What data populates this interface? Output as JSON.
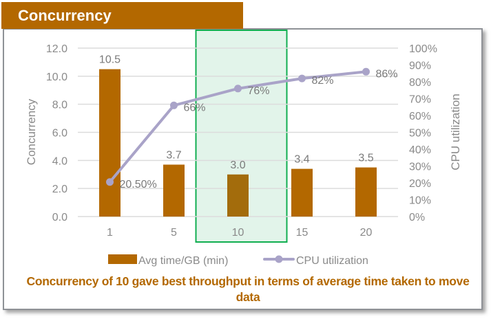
{
  "title": "Concurrency",
  "caption": "Concurrency of 10 gave best throughput in terms of average time taken to move data",
  "colors": {
    "bar": "#b36800",
    "bar_highlighted": "#a36c0c",
    "line": "#a9a3c8",
    "highlight_fill": "#e2f4ea",
    "highlight_border": "#10ae50",
    "axis_text": "#8a8a8a",
    "label_text": "#7a7a7a",
    "grid": "#dcdcdc"
  },
  "chart_data": {
    "type": "bar",
    "title": "Concurrency",
    "categories": [
      "1",
      "5",
      "10",
      "15",
      "20"
    ],
    "series": [
      {
        "name": "Avg time/GB (min)",
        "type": "bar",
        "axis": "left",
        "values": [
          10.5,
          3.7,
          3.0,
          3.4,
          3.5
        ],
        "labels": [
          "10.5",
          "3.7",
          "3.0",
          "3.4",
          "3.5"
        ]
      },
      {
        "name": "CPU utilization",
        "type": "line",
        "axis": "right",
        "values": [
          20.5,
          66,
          76,
          82,
          86
        ],
        "labels": [
          "20.50%",
          "66%",
          "76%",
          "82%",
          "86%"
        ]
      }
    ],
    "ylabel": "Concurrency",
    "ylabel_right": "CPU utilization",
    "xlabel": "",
    "ylim": [
      0,
      12
    ],
    "ylim_right": [
      0,
      100
    ],
    "yticks": [
      "0.0",
      "2.0",
      "4.0",
      "6.0",
      "8.0",
      "10.0",
      "12.0"
    ],
    "yticks_right": [
      "0%",
      "10%",
      "20%",
      "30%",
      "40%",
      "50%",
      "60%",
      "70%",
      "80%",
      "90%",
      "100%"
    ],
    "grid": true,
    "legend": "bottom",
    "highlight_category": "10"
  }
}
